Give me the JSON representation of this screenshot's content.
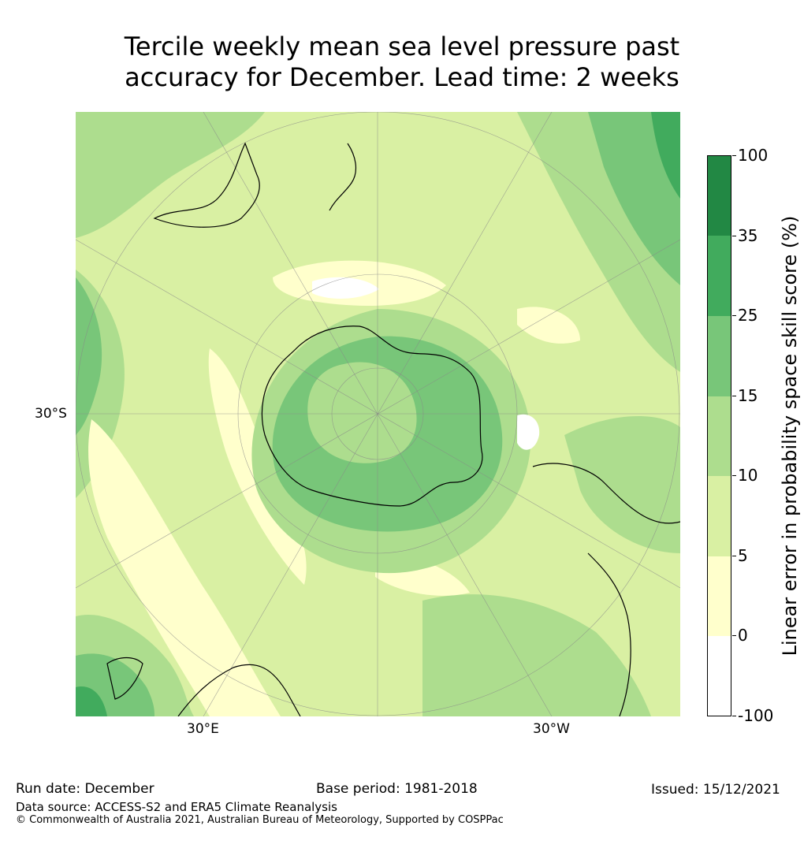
{
  "title": {
    "line1": "Tercile weekly mean sea level pressure past",
    "line2": "accuracy for December. Lead time: 2 weeks"
  },
  "map": {
    "projection": "south-polar-stereographic",
    "lat_label": "30°S",
    "lon_labels": [
      "30°E",
      "30°W"
    ]
  },
  "colorbar": {
    "title": "Linear error in probability space skill score (%)",
    "ticks": [
      "100",
      "35",
      "25",
      "15",
      "10",
      "5",
      "0",
      "-100"
    ],
    "bins": [
      {
        "range": "35 to 100",
        "color": "#228844"
      },
      {
        "range": "25 to 35",
        "color": "#41ab5d"
      },
      {
        "range": "15 to 25",
        "color": "#78c679"
      },
      {
        "range": "10 to 15",
        "color": "#addd8e"
      },
      {
        "range": "5 to 10",
        "color": "#d9f0a3"
      },
      {
        "range": "0 to 5",
        "color": "#ffffcc"
      },
      {
        "range": "-100 to 0",
        "color": "#ffffff"
      }
    ]
  },
  "footer": {
    "run_date": "Run date: December",
    "base_period": "Base period: 1981-2018",
    "issued": "Issued: 15/12/2021",
    "data_source": "Data source: ACCESS-S2 and ERA5 Climate Reanalysis",
    "copyright": "© Commonwealth of Australia 2021, Australian Bureau of Meteorology, Supported by COSPPac"
  }
}
